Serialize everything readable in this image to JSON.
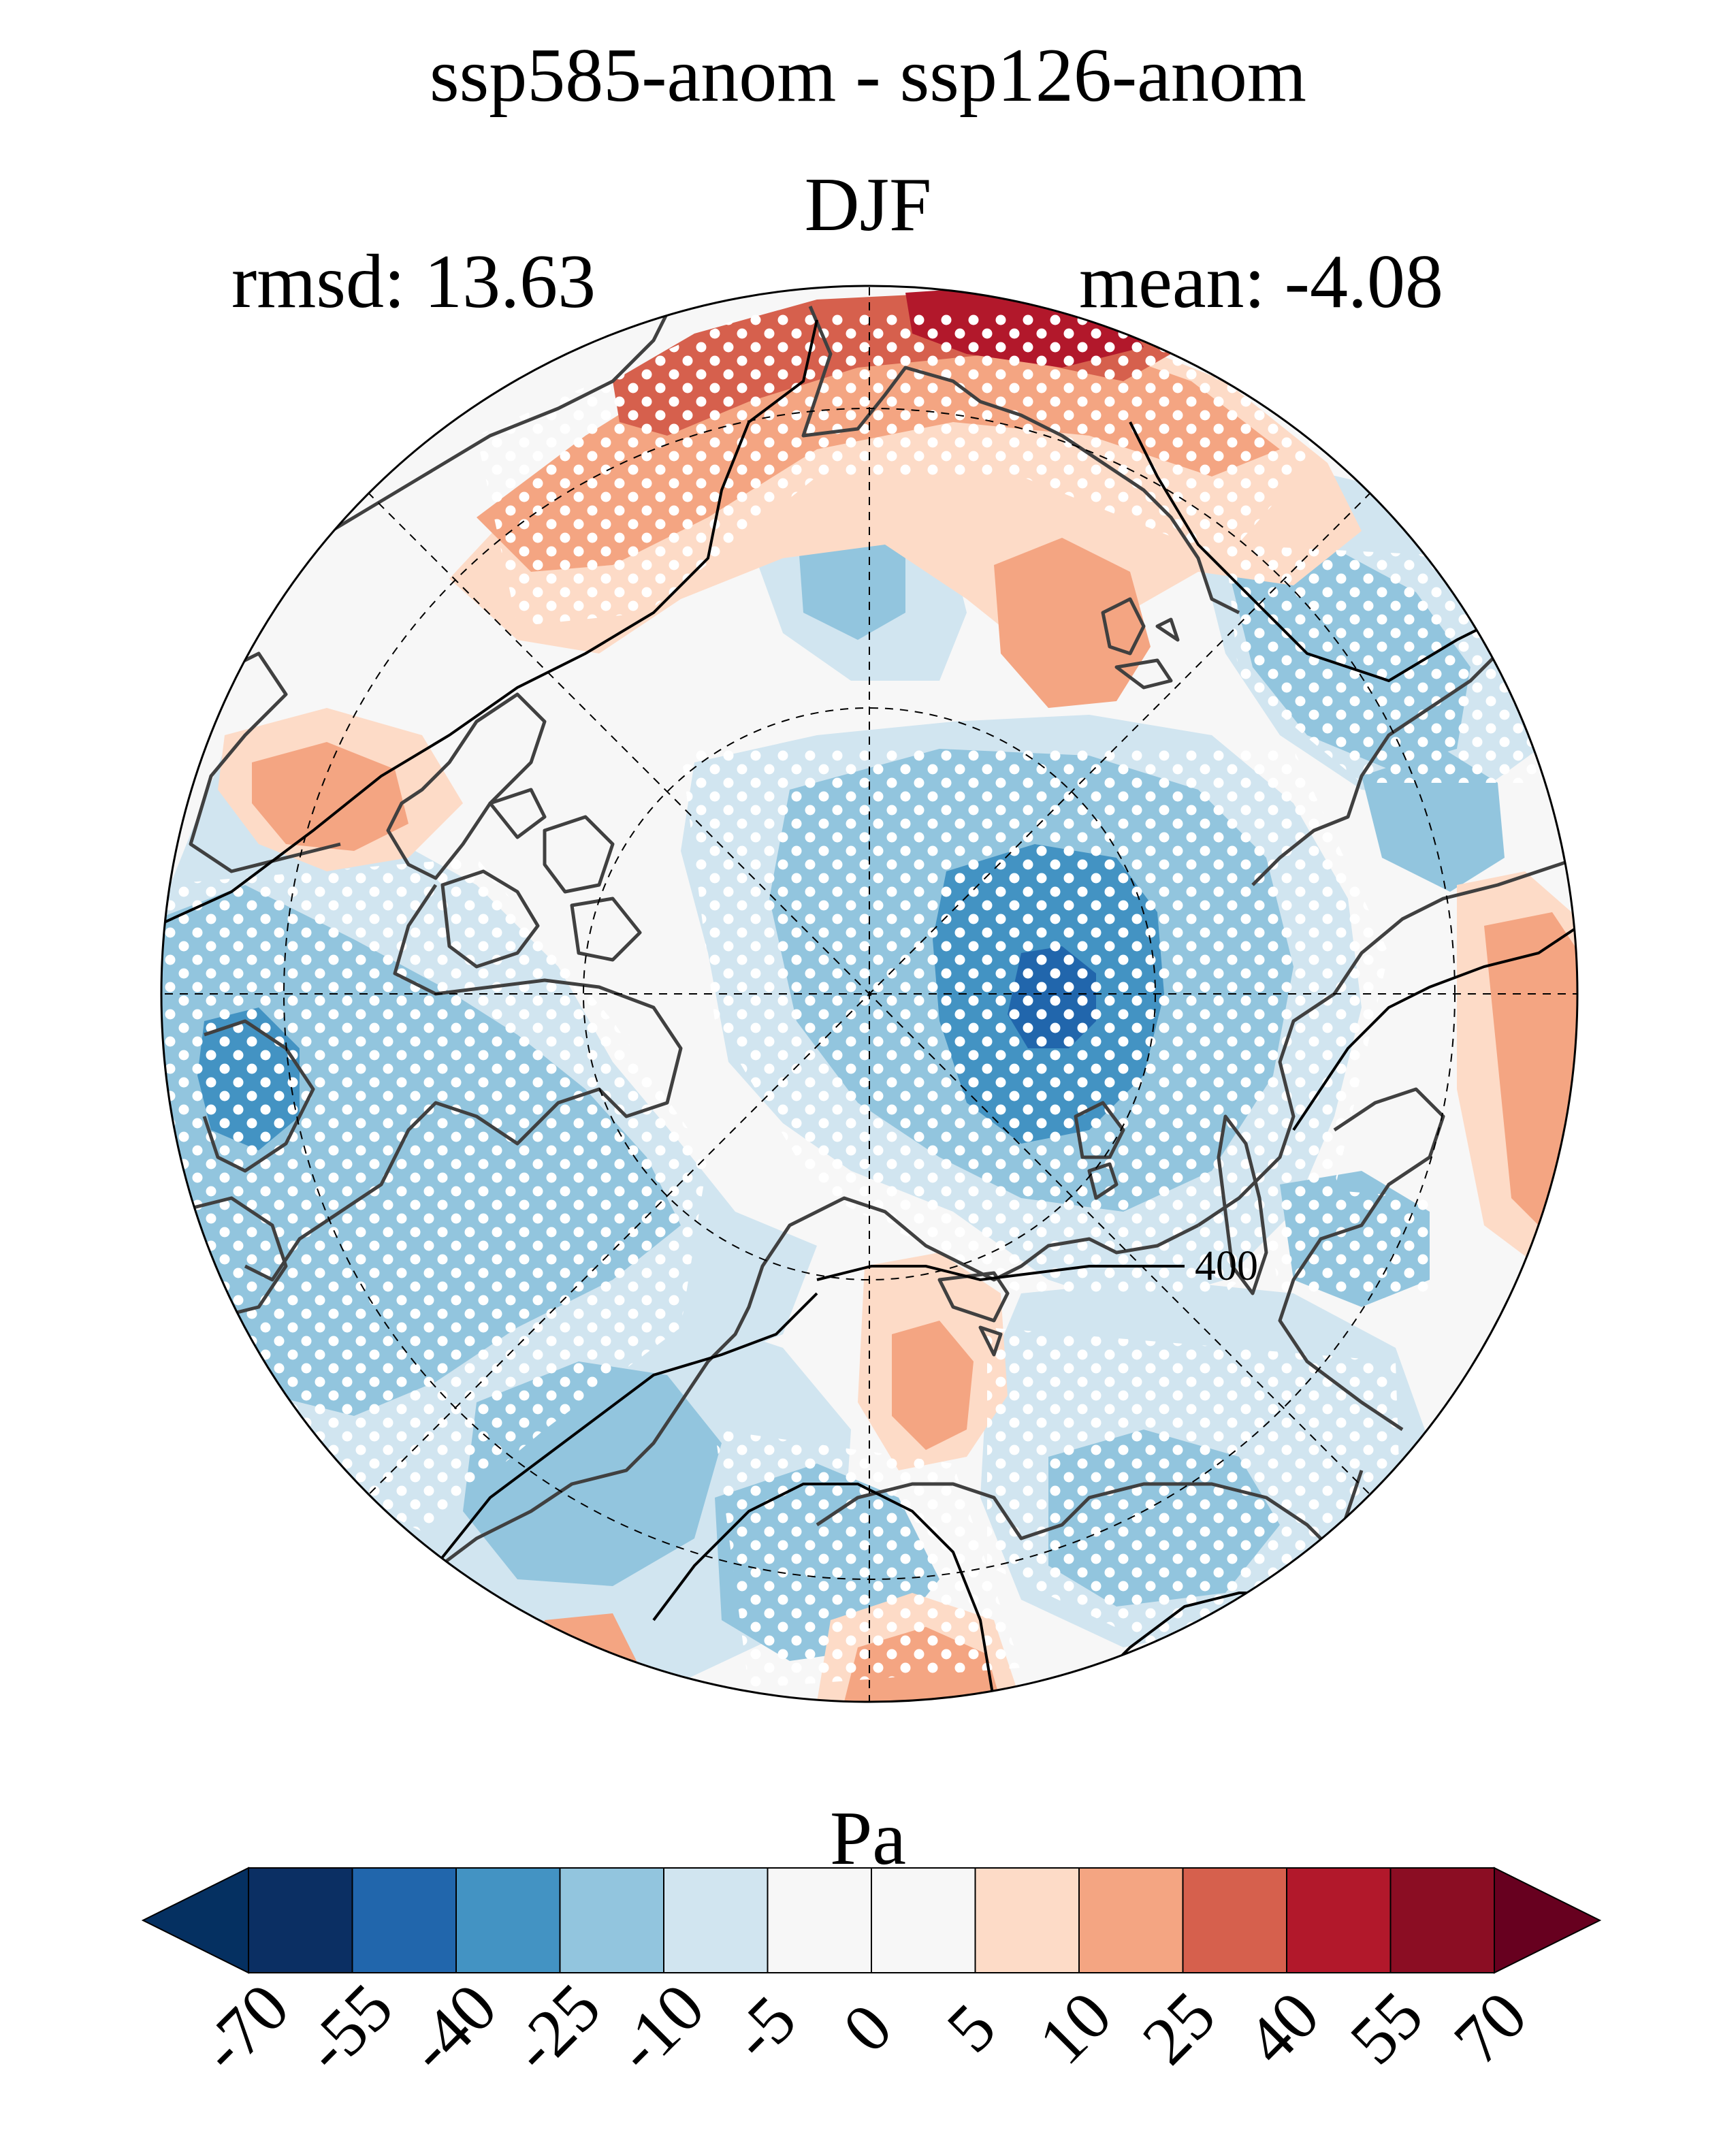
{
  "title": "ssp585-anom - ssp126-anom",
  "season": "DJF",
  "stats": {
    "rmsd": "rmsd: 13.63",
    "mean": "mean: -4.08"
  },
  "contour_label": "400",
  "colorbar": {
    "units": "Pa",
    "ticks": [
      "-70",
      "-55",
      "-40",
      "-25",
      "-10",
      "-5",
      "0",
      "5",
      "10",
      "25",
      "40",
      "55",
      "70"
    ],
    "colors": [
      "#053061",
      "#0b2f63",
      "#2166ac",
      "#4393c3",
      "#92c5de",
      "#d1e5f0",
      "#f7f7f7",
      "#f7f7f7",
      "#fddbc7",
      "#f4a582",
      "#d6604d",
      "#b2182b",
      "#8b0d23",
      "#67001f"
    ]
  },
  "map": {
    "projection": "north-polar-stereographic",
    "colors": {
      "strong_negative": "#2166ac",
      "negative": "#4393c3",
      "weak_negative": "#92c5de",
      "faint_negative": "#d1e5f0",
      "neutral": "#f7f7f7",
      "faint_positive": "#fddbc7",
      "weak_positive": "#f4a582",
      "positive": "#d6604d",
      "strong_positive": "#b2182b",
      "coastline": "#404040",
      "stipple": "#ffffff"
    }
  }
}
